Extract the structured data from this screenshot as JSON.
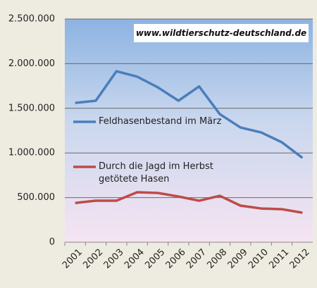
{
  "chart_data": {
    "type": "line",
    "annotation": "www.wildtierschutz-deutschland.de",
    "categories": [
      "2001",
      "2002",
      "2003",
      "2004",
      "2005",
      "2006",
      "2007",
      "2008",
      "2009",
      "2010",
      "2011",
      "2012"
    ],
    "series": [
      {
        "name": "Feldhasenbestand im März",
        "color": "#4a7ebb",
        "values": [
          1560000,
          1585000,
          1915000,
          1855000,
          1735000,
          1585000,
          1745000,
          1435000,
          1285000,
          1230000,
          1120000,
          945000
        ]
      },
      {
        "name": "Durch die Jagd im Herbst getötete Hasen",
        "color": "#be4b48",
        "values": [
          440000,
          465000,
          465000,
          560000,
          552000,
          512000,
          465000,
          520000,
          410000,
          378000,
          370000,
          330000
        ]
      }
    ],
    "ylim": [
      0,
      2500000
    ],
    "yticks": [
      0,
      {
        "value": 500000,
        "label": "500.000"
      },
      {
        "value": 1000000,
        "label": "1.000.000"
      },
      {
        "value": 1500000,
        "label": "1.500.000"
      },
      {
        "value": 2000000,
        "label": "2.000.000"
      },
      {
        "value": 2500000,
        "label": "2.500.000"
      }
    ],
    "grid": true
  }
}
